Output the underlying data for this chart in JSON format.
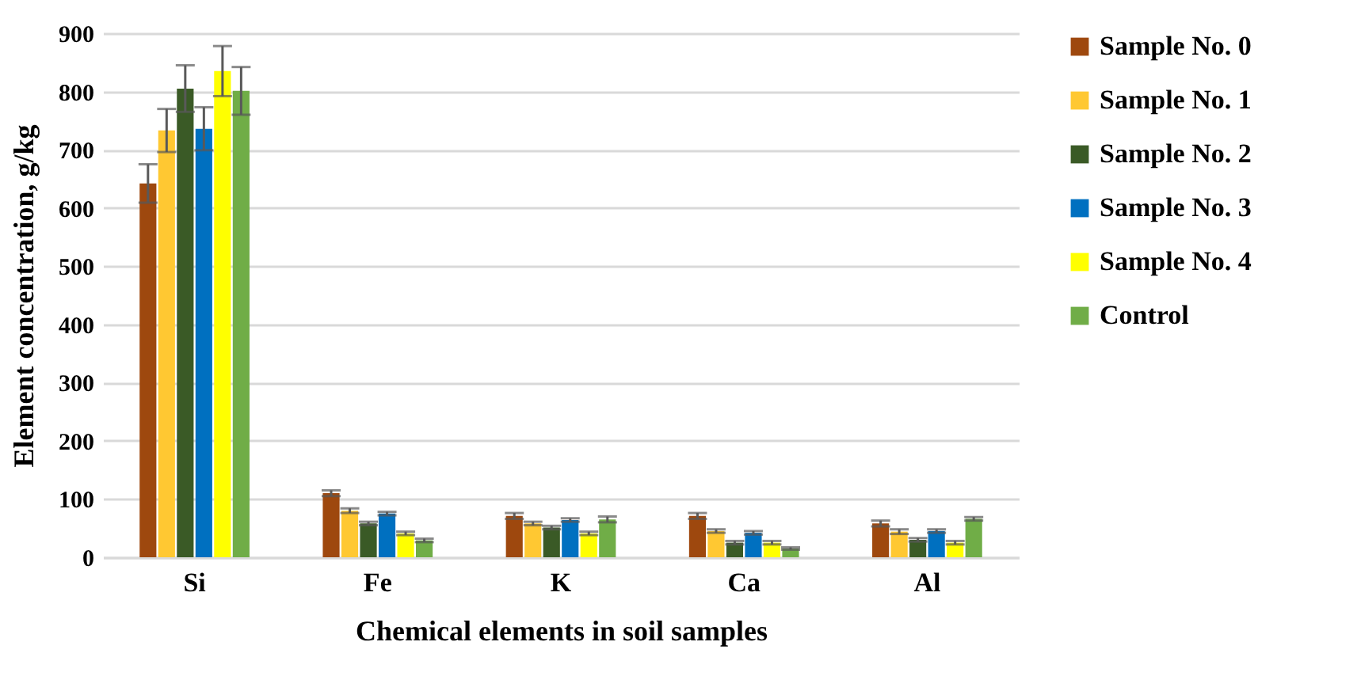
{
  "chart_data": {
    "type": "bar",
    "xlabel": "Chemical elements in soil samples",
    "ylabel": "Element concentration, g/kg",
    "categories": [
      "Si",
      "Fe",
      "K",
      "Ca",
      "Al"
    ],
    "series": [
      {
        "name": "Sample No. 0",
        "color": "#9e480e",
        "values": [
          642,
          110,
          71,
          71,
          58
        ],
        "errors": [
          33,
          5,
          5,
          5,
          5
        ]
      },
      {
        "name": "Sample No. 1",
        "color": "#ffc832",
        "values": [
          733,
          80,
          58,
          45,
          44
        ],
        "errors": [
          37,
          4,
          3,
          3,
          4
        ]
      },
      {
        "name": "Sample No. 2",
        "color": "#3a5a26",
        "values": [
          805,
          58,
          51,
          25,
          30
        ],
        "errors": [
          40,
          3,
          3,
          3,
          3
        ]
      },
      {
        "name": "Sample No. 3",
        "color": "#0070c0",
        "values": [
          736,
          75,
          64,
          42,
          45
        ],
        "errors": [
          37,
          3,
          3,
          3,
          3
        ]
      },
      {
        "name": "Sample No. 4",
        "color": "#ffff00",
        "values": [
          835,
          41,
          41,
          25,
          25
        ],
        "errors": [
          43,
          3,
          3,
          3,
          3
        ]
      },
      {
        "name": "Control",
        "color": "#70ad47",
        "values": [
          801,
          29,
          65,
          15,
          66
        ],
        "errors": [
          41,
          3,
          5,
          2,
          3
        ]
      }
    ],
    "ylim": [
      0,
      900
    ],
    "yticks": [
      0,
      100,
      200,
      300,
      400,
      500,
      600,
      700,
      800,
      900
    ],
    "grid": "y",
    "legend": "right"
  }
}
